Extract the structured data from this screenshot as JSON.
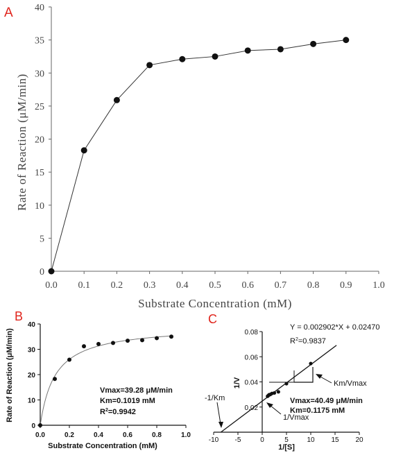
{
  "panel_labels": {
    "a": "A",
    "b": "B",
    "c": "C"
  },
  "colors": {
    "panel_label": "#e0241c",
    "ink": "#111111",
    "axis_text_a": "#444444"
  },
  "chart_data": [
    {
      "id": "A",
      "type": "line",
      "xlabel": "Substrate Concentration (mM)",
      "ylabel": "Rate of Reaction (μM/min)",
      "xlim": [
        0,
        1.0
      ],
      "ylim": [
        0,
        40
      ],
      "x_ticks": [
        "0.0",
        "0.1",
        "0.2",
        "0.3",
        "0.4",
        "0.5",
        "0.6",
        "0.7",
        "0.8",
        "0.9",
        "1.0"
      ],
      "y_ticks": [
        "0",
        "5",
        "10",
        "15",
        "20",
        "25",
        "30",
        "35",
        "40"
      ],
      "series": [
        {
          "x": [
            0,
            0.1,
            0.2,
            0.3,
            0.4,
            0.5,
            0.6,
            0.7,
            0.8,
            0.9
          ],
          "y": [
            0,
            18.3,
            25.9,
            31.2,
            32.1,
            32.5,
            33.4,
            33.6,
            34.4,
            35.0
          ]
        }
      ],
      "grid": false,
      "legend": "none"
    },
    {
      "id": "B",
      "type": "scatter",
      "xlabel": "Substrate Concentration (mM)",
      "ylabel": "Rate of Reaction (μM/min)",
      "xlim": [
        0,
        1.0
      ],
      "ylim": [
        0,
        40
      ],
      "x_ticks": [
        "0.0",
        "0.2",
        "0.4",
        "0.6",
        "0.8",
        "1.0"
      ],
      "y_ticks": [
        "0",
        "10",
        "20",
        "30",
        "40"
      ],
      "series": [
        {
          "x": [
            0,
            0.1,
            0.2,
            0.3,
            0.4,
            0.5,
            0.6,
            0.7,
            0.8,
            0.9
          ],
          "y": [
            0,
            18.3,
            25.9,
            31.2,
            32.1,
            32.5,
            33.4,
            33.6,
            34.4,
            35.0
          ]
        }
      ],
      "fit": {
        "model": "michaelis-menten",
        "vmax": 39.28,
        "km": 0.1019
      },
      "annotations": [
        "Vmax=39.28 μM/min",
        "Km=0.1019 mM",
        "R",
        "2",
        "=0.9942"
      ],
      "grid": false,
      "legend": "none"
    },
    {
      "id": "C",
      "type": "scatter",
      "xlabel": "1/[S]",
      "ylabel": "1/V",
      "xlim": [
        -10,
        20
      ],
      "ylim": [
        0,
        0.08
      ],
      "x_ticks": [
        "-10",
        "-5",
        "0",
        "5",
        "10",
        "15",
        "20"
      ],
      "y_ticks": [
        "0.02",
        "0.04",
        "0.06",
        "0.08"
      ],
      "series": [
        {
          "x": [
            1.111,
            1.25,
            1.429,
            1.667,
            2.0,
            2.5,
            3.333,
            5.0,
            10.0
          ],
          "y": [
            0.0286,
            0.0291,
            0.0298,
            0.03,
            0.0308,
            0.0312,
            0.0321,
            0.0386,
            0.0546
          ]
        }
      ],
      "fit": {
        "slope": 0.002902,
        "intercept": 0.0247
      },
      "equation": "Y = 0.002902*X + 0.02470",
      "r2_prefix": "R",
      "r2_sup": "2",
      "r2_value": "=0.9837",
      "annotations": [
        "Km/Vmax",
        "-1/Km",
        "1/Vmax",
        "Vmax=40.49 μM/min",
        "Km=0.1175 mM"
      ],
      "grid": false,
      "legend": "none"
    }
  ]
}
